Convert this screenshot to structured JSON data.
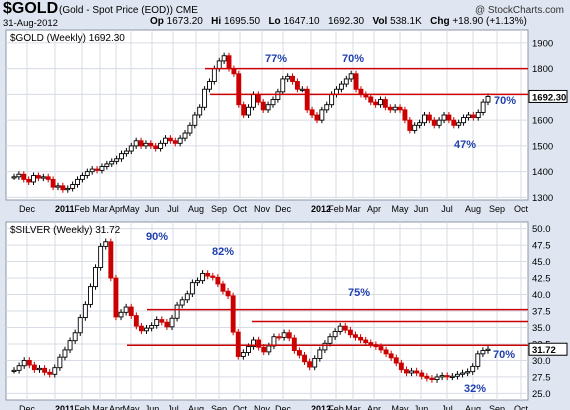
{
  "header": {
    "symbol": "$GOLD",
    "subtitle": "(Gold - Spot Price (EOD)) CME",
    "date": "31-Aug-2012",
    "brand": "@ StockCharts.com",
    "quote": {
      "op_label": "Op",
      "op": "1673.20",
      "hi_label": "Hi",
      "hi": "1695.50",
      "lo_label": "Lo",
      "lo": "1647.10",
      "cl": "1692.30",
      "vol_label": "Vol",
      "vol": "538.1K",
      "chg_label": "Chg",
      "chg": "+18.90 (+1.13%)"
    }
  },
  "chart_data": [
    {
      "type": "candlestick",
      "title": "$GOLD (Weekly) 1692.30",
      "x_tick_labels": [
        "Dec",
        "2011",
        "Feb",
        "Mar",
        "Apr",
        "May",
        "Jun",
        "Jul",
        "Aug",
        "Sep",
        "Oct",
        "Nov",
        "Dec",
        "2012",
        "Feb",
        "Mar",
        "Apr",
        "May",
        "Jun",
        "Jul",
        "Aug",
        "Sep",
        "Oct"
      ],
      "y_ticks": [
        1300,
        1400,
        1500,
        1600,
        1700,
        1800,
        1900
      ],
      "ylim": [
        1290,
        1950
      ],
      "last_price_label": "1692.30",
      "horizontal_lines": [
        1800,
        1700
      ],
      "annotations": [
        "77%",
        "70%",
        "70%",
        "47%"
      ],
      "weekly_closes": [
        1380,
        1390,
        1370,
        1360,
        1385,
        1375,
        1380,
        1370,
        1340,
        1345,
        1330,
        1335,
        1350,
        1370,
        1385,
        1400,
        1410,
        1405,
        1420,
        1430,
        1440,
        1450,
        1470,
        1480,
        1500,
        1520,
        1500,
        1510,
        1500,
        1490,
        1510,
        1530,
        1520,
        1510,
        1530,
        1550,
        1580,
        1620,
        1650,
        1720,
        1750,
        1800,
        1830,
        1850,
        1800,
        1780,
        1660,
        1620,
        1650,
        1700,
        1670,
        1640,
        1660,
        1680,
        1710,
        1760,
        1770,
        1750,
        1720,
        1720,
        1640,
        1620,
        1600,
        1640,
        1660,
        1700,
        1720,
        1740,
        1760,
        1780,
        1720,
        1700,
        1690,
        1670,
        1660,
        1680,
        1650,
        1640,
        1650,
        1640,
        1600,
        1560,
        1580,
        1590,
        1620,
        1600,
        1580,
        1600,
        1620,
        1600,
        1580,
        1590,
        1610,
        1620,
        1610,
        1630,
        1670,
        1692
      ]
    },
    {
      "type": "candlestick",
      "title": "$SILVER (Weekly) 31.72",
      "x_tick_labels": [
        "Dec",
        "2011",
        "Feb",
        "Mar",
        "Apr",
        "May",
        "Jun",
        "Jul",
        "Aug",
        "Sep",
        "Oct",
        "Nov",
        "Dec",
        "2012",
        "Feb",
        "Mar",
        "Apr",
        "May",
        "Jun",
        "Jul",
        "Aug",
        "Sep",
        "Oct"
      ],
      "y_ticks": [
        25.0,
        27.5,
        30.0,
        32.5,
        35.0,
        37.5,
        40.0,
        42.5,
        45.0,
        47.5,
        50.0
      ],
      "ylim": [
        24,
        51
      ],
      "last_price_label": "31.72",
      "horizontal_lines": [
        37.7,
        35.9,
        32.3
      ],
      "annotations": [
        "90%",
        "82%",
        "75%",
        "70%",
        "32%"
      ],
      "weekly_closes": [
        28.5,
        29.2,
        30.0,
        29.3,
        28.6,
        28.8,
        28.2,
        27.9,
        28.9,
        30.5,
        31.6,
        33.0,
        34.2,
        36.5,
        38.5,
        41.2,
        44.1,
        47.3,
        48.0,
        42.5,
        36.6,
        37.3,
        38.1,
        36.8,
        35.2,
        34.5,
        34.9,
        35.3,
        36.2,
        35.8,
        35.1,
        36.4,
        38.4,
        39.2,
        40.1,
        41.8,
        42.1,
        43.2,
        42.8,
        42.6,
        41.6,
        40.5,
        39.8,
        34.3,
        30.6,
        31.2,
        32.1,
        33.1,
        32.0,
        31.3,
        32.2,
        33.6,
        33.5,
        34.2,
        33.4,
        31.5,
        30.8,
        29.8,
        29.0,
        30.3,
        31.6,
        32.6,
        33.6,
        34.4,
        35.2,
        34.6,
        33.9,
        33.5,
        33.1,
        32.7,
        32.4,
        32.1,
        31.6,
        31.0,
        30.4,
        29.6,
        28.6,
        28.1,
        28.4,
        28.1,
        27.6,
        27.3,
        27.1,
        27.5,
        27.7,
        27.5,
        27.6,
        27.9,
        28.1,
        28.3,
        29.1,
        31.0,
        31.5,
        31.7
      ]
    }
  ],
  "styles": {
    "up_color": "#000000",
    "down_color": "#cc0000",
    "line_color": "#cc0000",
    "annotation_color": "#1f3fae",
    "grid_color": "#d6dbe4"
  }
}
